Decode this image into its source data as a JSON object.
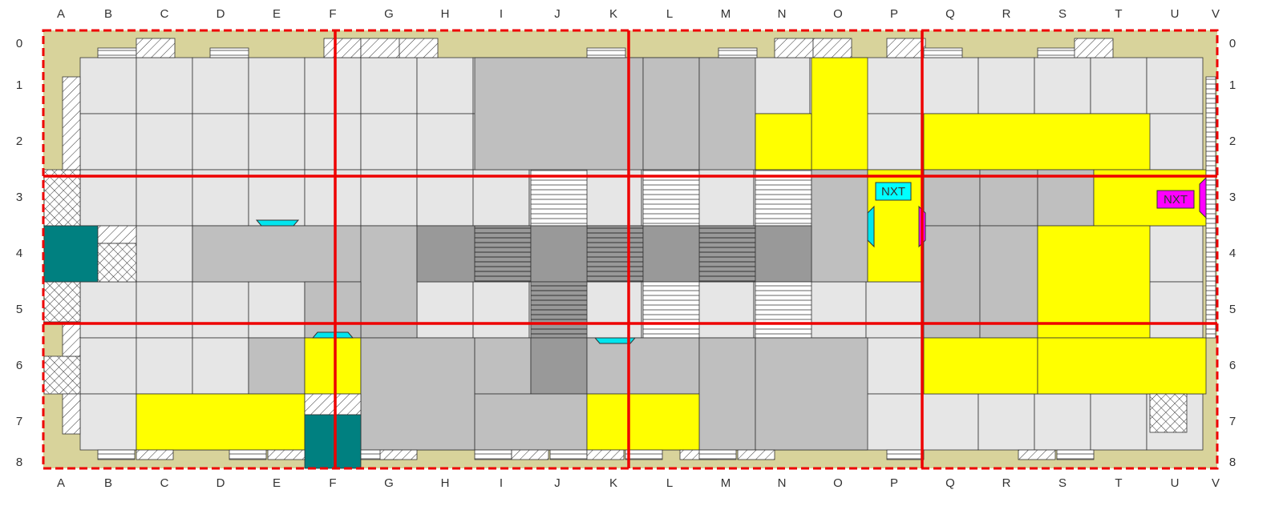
{
  "columns": [
    "A",
    "B",
    "C",
    "D",
    "E",
    "F",
    "G",
    "H",
    "I",
    "J",
    "K",
    "L",
    "M",
    "N",
    "O",
    "P",
    "Q",
    "R",
    "S",
    "T",
    "U",
    "V"
  ],
  "rows": [
    "0",
    "1",
    "2",
    "3",
    "4",
    "5",
    "6",
    "7",
    "8"
  ],
  "markers": [
    "NXT",
    "NXT"
  ]
}
